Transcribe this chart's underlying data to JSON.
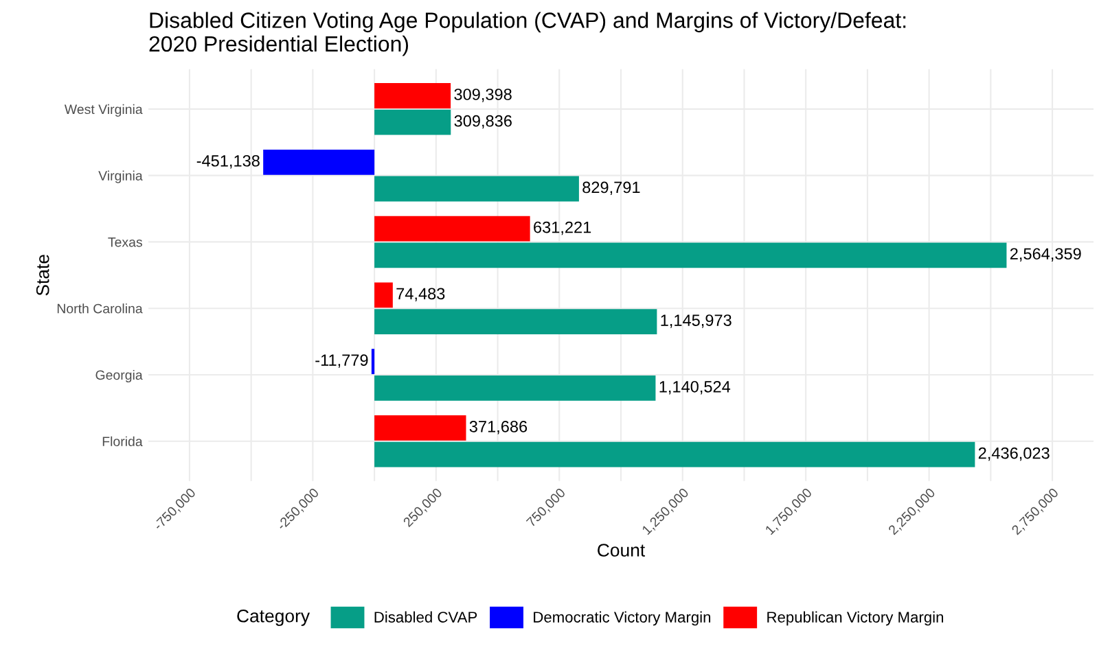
{
  "chart_data": {
    "type": "bar",
    "orientation": "horizontal",
    "title": "Disabled Citizen Voting Age Population (CVAP) and Margins of Victory/Defeat:\n2020 Presidential Election)",
    "xlabel": "Count",
    "ylabel": "State",
    "legend_title": "Category",
    "categories": [
      "West Virginia",
      "Virginia",
      "Texas",
      "North Carolina",
      "Georgia",
      "Florida"
    ],
    "series": [
      {
        "name": "Disabled CVAP",
        "color": "#069e87",
        "values": [
          309836,
          829791,
          2564359,
          1145973,
          1140524,
          2436023
        ],
        "value_labels": [
          "309,836",
          "829,791",
          "2,564,359",
          "1,145,973",
          "1,140,524",
          "2,436,023"
        ]
      },
      {
        "name": "Democratic Victory Margin",
        "color": "#0000ff",
        "values": [
          null,
          -451138,
          null,
          null,
          -11779,
          null
        ],
        "value_labels": [
          null,
          "-451,138",
          null,
          null,
          "-11,779",
          null
        ]
      },
      {
        "name": "Republican Victory Margin",
        "color": "#ff0000",
        "values": [
          309398,
          null,
          631221,
          74483,
          null,
          371686
        ],
        "value_labels": [
          "309,398",
          null,
          "631,221",
          "74,483",
          null,
          "371,686"
        ]
      }
    ],
    "xlim": [
      -917000,
      2917000
    ],
    "xticks": [
      {
        "value": -750000,
        "label": "-750,000"
      },
      {
        "value": -500000,
        "label": null
      },
      {
        "value": -250000,
        "label": "-250,000"
      },
      {
        "value": 0,
        "label": null
      },
      {
        "value": 250000,
        "label": "250,000"
      },
      {
        "value": 500000,
        "label": null
      },
      {
        "value": 750000,
        "label": "750,000"
      },
      {
        "value": 1000000,
        "label": null
      },
      {
        "value": 1250000,
        "label": "1,250,000"
      },
      {
        "value": 1500000,
        "label": null
      },
      {
        "value": 1750000,
        "label": "1,750,000"
      },
      {
        "value": 2000000,
        "label": null
      },
      {
        "value": 2250000,
        "label": "2,250,000"
      },
      {
        "value": 2500000,
        "label": null
      },
      {
        "value": 2750000,
        "label": "2,750,000"
      }
    ],
    "grid": true,
    "legend": "bottom"
  }
}
